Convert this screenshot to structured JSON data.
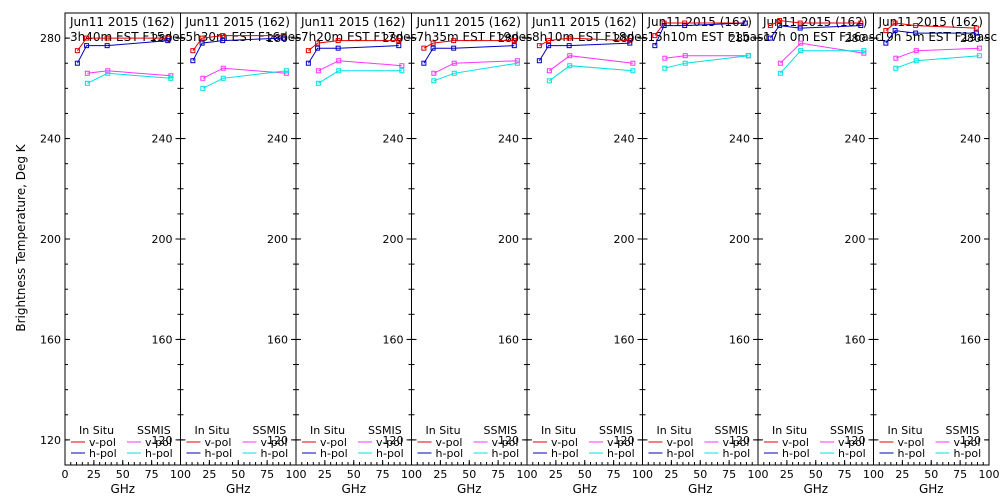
{
  "figure": {
    "ylabel": "Brightness Temperature, Deg K",
    "xlabel": "GHz",
    "ytick_labels": [
      "120",
      "160",
      "200",
      "240",
      "280"
    ],
    "xtick_labels": [
      "0",
      "25",
      "50",
      "75",
      "100"
    ],
    "legend": {
      "group1": "In Situ",
      "group2": "SSMIS",
      "vpol": "v-pol",
      "hpol": "h-pol"
    },
    "colors": {
      "insitu_v": "#e00000",
      "insitu_h": "#0000c0",
      "ssmis_v": "#ff33ff",
      "ssmis_h": "#00e0e0",
      "frame": "#000000"
    }
  },
  "chart_data": [
    {
      "type": "line",
      "title_line1": "Jun11 2015 (162)",
      "title_line2": "3h40m EST F15des",
      "xlim": [
        0,
        100
      ],
      "ylim": [
        110,
        290
      ],
      "frequencies": [
        10.7,
        18.7,
        36.5,
        89
      ],
      "ssmis_frequencies": [
        19.35,
        37,
        91.65
      ],
      "series": [
        {
          "name": "In Situ v-pol",
          "values": [
            275,
            280,
            280,
            280
          ]
        },
        {
          "name": "In Situ h-pol",
          "values": [
            270,
            277,
            277,
            279
          ]
        },
        {
          "name": "SSMIS v-pol",
          "values": [
            266,
            267,
            265
          ]
        },
        {
          "name": "SSMIS h-pol",
          "values": [
            262,
            266,
            264
          ]
        }
      ]
    },
    {
      "type": "line",
      "title_line1": "Jun11 2015 (162)",
      "title_line2": "5h30m EST F16des",
      "xlim": [
        0,
        100
      ],
      "ylim": [
        110,
        290
      ],
      "frequencies": [
        10.7,
        18.7,
        36.5,
        89
      ],
      "ssmis_frequencies": [
        19.35,
        37,
        91.65
      ],
      "series": [
        {
          "name": "In Situ v-pol",
          "values": [
            275,
            280,
            281,
            281
          ]
        },
        {
          "name": "In Situ h-pol",
          "values": [
            271,
            278,
            279,
            280
          ]
        },
        {
          "name": "SSMIS v-pol",
          "values": [
            264,
            268,
            266
          ]
        },
        {
          "name": "SSMIS h-pol",
          "values": [
            260,
            264,
            267
          ]
        }
      ]
    },
    {
      "type": "line",
      "title_line1": "Jun11 2015 (162)",
      "title_line2": "7h20m EST F17des",
      "xlim": [
        0,
        100
      ],
      "ylim": [
        110,
        290
      ],
      "frequencies": [
        10.7,
        18.7,
        36.5,
        89
      ],
      "ssmis_frequencies": [
        19.35,
        37,
        91.65
      ],
      "series": [
        {
          "name": "In Situ v-pol",
          "values": [
            275,
            278,
            279,
            279
          ]
        },
        {
          "name": "In Situ h-pol",
          "values": [
            270,
            276,
            276,
            277
          ]
        },
        {
          "name": "SSMIS v-pol",
          "values": [
            267,
            271,
            269
          ]
        },
        {
          "name": "SSMIS h-pol",
          "values": [
            262,
            267,
            267
          ]
        }
      ]
    },
    {
      "type": "line",
      "title_line1": "Jun11 2015 (162)",
      "title_line2": "7h35m EST F19des",
      "xlim": [
        0,
        100
      ],
      "ylim": [
        110,
        290
      ],
      "frequencies": [
        10.7,
        18.7,
        36.5,
        89
      ],
      "ssmis_frequencies": [
        19.35,
        37,
        91.65
      ],
      "series": [
        {
          "name": "In Situ v-pol",
          "values": [
            276,
            278,
            279,
            279
          ]
        },
        {
          "name": "In Situ h-pol",
          "values": [
            270,
            276,
            276,
            277
          ]
        },
        {
          "name": "SSMIS v-pol",
          "values": [
            266,
            270,
            271
          ]
        },
        {
          "name": "SSMIS h-pol",
          "values": [
            263,
            266,
            270
          ]
        }
      ]
    },
    {
      "type": "line",
      "title_line1": "Jun11 2015 (162)",
      "title_line2": "8h10m EST F18des",
      "xlim": [
        0,
        100
      ],
      "ylim": [
        110,
        290
      ],
      "frequencies": [
        10.7,
        18.7,
        36.5,
        89
      ],
      "ssmis_frequencies": [
        19.35,
        37,
        91.65
      ],
      "series": [
        {
          "name": "In Situ v-pol",
          "values": [
            277,
            279,
            280,
            279
          ]
        },
        {
          "name": "In Situ h-pol",
          "values": [
            271,
            277,
            277,
            278
          ]
        },
        {
          "name": "SSMIS v-pol",
          "values": [
            267,
            273,
            270
          ]
        },
        {
          "name": "SSMIS h-pol",
          "values": [
            263,
            269,
            267
          ]
        }
      ]
    },
    {
      "type": "line",
      "title_line1": "Jun11 2015 (162)",
      "title_line2": "15h10m EST F15asc",
      "xlim": [
        0,
        100
      ],
      "ylim": [
        110,
        290
      ],
      "frequencies": [
        10.7,
        18.7,
        36.5,
        89
      ],
      "ssmis_frequencies": [
        19.35,
        37,
        91.65
      ],
      "series": [
        {
          "name": "In Situ v-pol",
          "values": [
            281,
            286,
            286,
            286
          ]
        },
        {
          "name": "In Situ h-pol",
          "values": [
            277,
            285,
            285,
            286
          ]
        },
        {
          "name": "SSMIS v-pol",
          "values": [
            272,
            273,
            273
          ]
        },
        {
          "name": "SSMIS h-pol",
          "values": [
            268,
            270,
            273
          ]
        }
      ]
    },
    {
      "type": "line",
      "title_line1": "Jun11 2015 (162)",
      "title_line2": "17h 0m EST F16asc",
      "xlim": [
        0,
        100
      ],
      "ylim": [
        110,
        290
      ],
      "frequencies": [
        10.7,
        18.7,
        36.5,
        89
      ],
      "ssmis_frequencies": [
        19.35,
        37,
        91.65
      ],
      "series": [
        {
          "name": "In Situ v-pol",
          "values": [
            285,
            287,
            286,
            286
          ]
        },
        {
          "name": "In Situ h-pol",
          "values": [
            280,
            285,
            284,
            285
          ]
        },
        {
          "name": "SSMIS v-pol",
          "values": [
            270,
            278,
            274
          ]
        },
        {
          "name": "SSMIS h-pol",
          "values": [
            266,
            275,
            275
          ]
        }
      ]
    },
    {
      "type": "line",
      "title_line1": "Jun11 2015 (162)",
      "title_line2": "19h 5m EST F19asc",
      "xlim": [
        0,
        100
      ],
      "ylim": [
        110,
        290
      ],
      "frequencies": [
        10.7,
        18.7,
        36.5,
        89
      ],
      "ssmis_frequencies": [
        19.35,
        37,
        91.65
      ],
      "series": [
        {
          "name": "In Situ v-pol",
          "values": [
            283,
            286,
            285,
            284
          ]
        },
        {
          "name": "In Situ h-pol",
          "values": [
            278,
            283,
            282,
            282
          ]
        },
        {
          "name": "SSMIS v-pol",
          "values": [
            272,
            275,
            276
          ]
        },
        {
          "name": "SSMIS h-pol",
          "values": [
            268,
            271,
            273
          ]
        }
      ]
    }
  ]
}
